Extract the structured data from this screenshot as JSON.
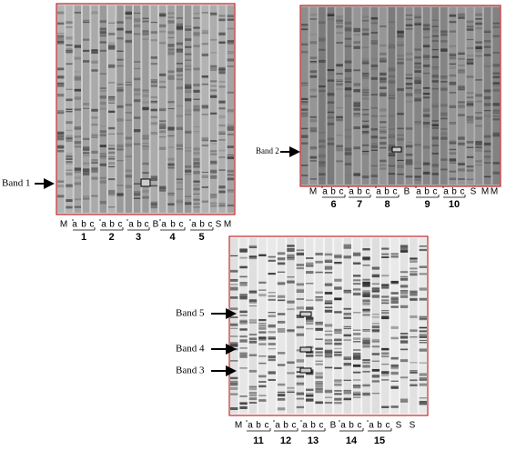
{
  "panels": [
    {
      "band_labels": [
        "Band 1"
      ],
      "lane_labels": [
        "M",
        "a",
        "b",
        "c",
        "a",
        "b",
        "c",
        "a",
        "b",
        "c",
        "B",
        "a",
        "b",
        "c",
        "a",
        "b",
        "c",
        "S",
        "M"
      ],
      "group_labels": [
        "1",
        "2",
        "3",
        "4",
        "5"
      ]
    },
    {
      "band_labels": [
        "Band 2"
      ],
      "lane_labels": [
        "M",
        "a",
        "b",
        "c",
        "a",
        "b",
        "c",
        "a",
        "b",
        "c",
        "B",
        "a",
        "b",
        "c",
        "a",
        "b",
        "c",
        "S",
        "M",
        "M"
      ],
      "group_labels": [
        "6",
        "7",
        "8",
        "9",
        "10"
      ]
    },
    {
      "band_labels": [
        "Band 5",
        "Band 4",
        "Band 3"
      ],
      "lane_labels": [
        "M",
        "a",
        "b",
        "c",
        "a",
        "b",
        "c",
        "a",
        "b",
        "c",
        "B",
        "a",
        "b",
        "c",
        "a",
        "b",
        "c",
        "S",
        "S"
      ],
      "group_labels": [
        "11",
        "12",
        "13",
        "14",
        "15"
      ]
    }
  ]
}
